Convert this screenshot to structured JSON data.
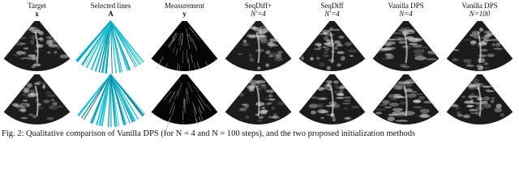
{
  "figure": {
    "columns": [
      {
        "title": "Target",
        "symbol": "x"
      },
      {
        "title": "Selected lines",
        "symbol": "A"
      },
      {
        "title": "Measurement",
        "symbol": "y"
      },
      {
        "title": "SeqDiff+",
        "symbol": "N′=4"
      },
      {
        "title": "SeqDiff",
        "symbol": "N′=4"
      },
      {
        "title": "Vanilla DPS",
        "symbol": "N=4"
      },
      {
        "title": "Vanilla DPS",
        "symbol": "N=100"
      }
    ],
    "caption": "Fig. 2: Qualitative comparison of Vanilla DPS (for N = 4 and N = 100 steps), and the two proposed initialization methods"
  }
}
